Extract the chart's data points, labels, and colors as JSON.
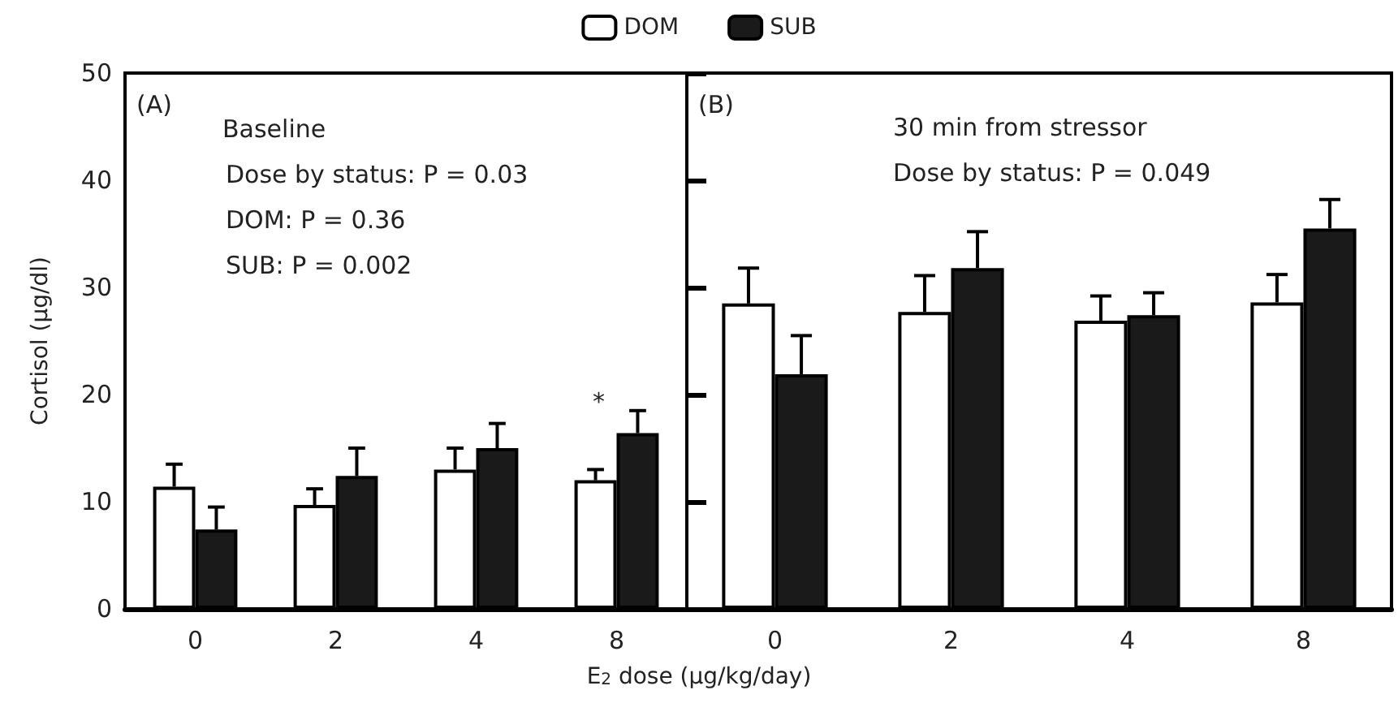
{
  "chart_data": [
    {
      "type": "bar",
      "categories": [
        "0",
        "2",
        "4",
        "8"
      ],
      "ylabel": "Cortisol (μg/dl)",
      "ylim": [
        0,
        50
      ],
      "yticks": [
        0,
        10,
        20,
        30,
        40,
        50
      ],
      "grid": false,
      "legend": "top",
      "series": [
        {
          "name": "DOM",
          "color": "#ffffff",
          "values": [
            11.4,
            9.7,
            13.0,
            12.0
          ],
          "errors": [
            [
              11.4,
              13.5
            ],
            [
              9.7,
              11.2
            ],
            [
              13.0,
              15.0
            ],
            [
              12.0,
              13.0
            ]
          ]
        },
        {
          "name": "SUB",
          "color": "#1a1a1a",
          "values": [
            7.4,
            12.4,
            15.0,
            16.4
          ],
          "errors": [
            [
              7.4,
              9.5
            ],
            [
              12.4,
              15.0
            ],
            [
              15.0,
              17.3
            ],
            [
              16.4,
              18.5
            ]
          ]
        }
      ],
      "annotations": [
        "(A)",
        "Baseline",
        "Dose by status: P = 0.03",
        "DOM: P = 0.36",
        "SUB: P = 0.002",
        "*"
      ]
    },
    {
      "type": "bar",
      "categories": [
        "0",
        "2",
        "4",
        "8"
      ],
      "xlabel": "E$_{2}$ dose (μg/kg/day)",
      "ylim": [
        0,
        50
      ],
      "yticks": [
        0,
        10,
        20,
        30,
        40,
        50
      ],
      "tick_labels": "x",
      "grid": false,
      "series": [
        {
          "color": "#ffffff",
          "values": [
            28.5,
            27.7,
            26.9,
            28.6
          ],
          "errors": [
            [
              28.5,
              31.8
            ],
            [
              27.7,
              31.1
            ],
            [
              26.9,
              29.2
            ],
            [
              28.6,
              31.2
            ]
          ]
        },
        {
          "color": "#1a1a1a",
          "values": [
            21.9,
            31.8,
            27.4,
            35.5
          ],
          "errors": [
            [
              21.9,
              25.5
            ],
            [
              31.8,
              35.2
            ],
            [
              27.4,
              29.5
            ],
            [
              35.5,
              38.2
            ]
          ]
        }
      ],
      "annotations": [
        "(B)",
        "30 min from stressor",
        "Dose by status: P = 0.049"
      ]
    }
  ]
}
